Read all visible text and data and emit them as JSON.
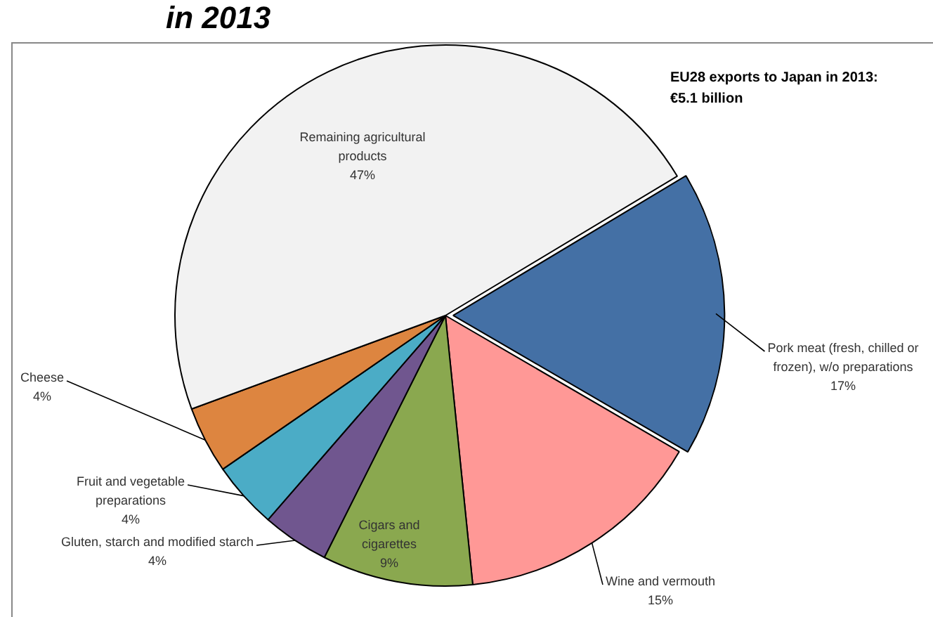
{
  "chart_data": {
    "type": "pie",
    "title": "in 2013",
    "categories": [
      "Pork meat (fresh, chilled or frozen), w/o preparations",
      "Wine and vermouth",
      "Cigars and cigarettes",
      "Gluten, starch and modified starch",
      "Fruit and vegetable preparations",
      "Cheese",
      "Remaining agricultural products"
    ],
    "values": [
      17,
      15,
      9,
      4,
      4,
      4,
      47
    ],
    "value_labels": [
      "17%",
      "15%",
      "9%",
      "4%",
      "4%",
      "4%",
      "47%"
    ],
    "colors": [
      "#4470a5",
      "#ff9896",
      "#8aa84f",
      "#70568f",
      "#4bacc6",
      "#dd8540",
      "#f2f2f2"
    ],
    "annotations": [
      "EU28 exports to Japan in 2013:\n€5.1 billion"
    ],
    "legend": false
  }
}
